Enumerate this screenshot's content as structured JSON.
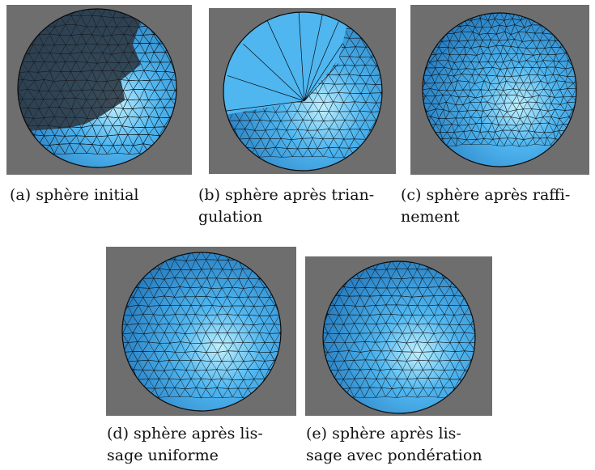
{
  "figure": {
    "panels": [
      {
        "id": "a",
        "label": "(a)",
        "caption": "sphère initial",
        "variant": "initial"
      },
      {
        "id": "b",
        "label": "(b)",
        "caption": "sphère après triangulation",
        "caption_lines": [
          "sphère après trian-",
          "gulation"
        ],
        "variant": "triangulated"
      },
      {
        "id": "c",
        "label": "(c)",
        "caption": "sphère après raffinement",
        "caption_lines": [
          "sphère après raffi-",
          "nement"
        ],
        "variant": "refined"
      },
      {
        "id": "d",
        "label": "(d)",
        "caption": "sphère après lissage uniforme",
        "caption_lines": [
          "sphère après lis-",
          "sage uniforme"
        ],
        "variant": "smoothed"
      },
      {
        "id": "e",
        "label": "(e)",
        "caption": "sphère après lissage avec pondération",
        "caption_lines": [
          "sphère après lis-",
          "sage avec pondération"
        ],
        "variant": "weighted"
      }
    ],
    "colors": {
      "background": "#6e6e6e",
      "sphere_light": "#bff0ff",
      "sphere_mid": "#4fb6f0",
      "sphere_dark": "#1f6fb3",
      "hole_dark": "#2f3a45",
      "wire": "#0a0a0a"
    }
  }
}
